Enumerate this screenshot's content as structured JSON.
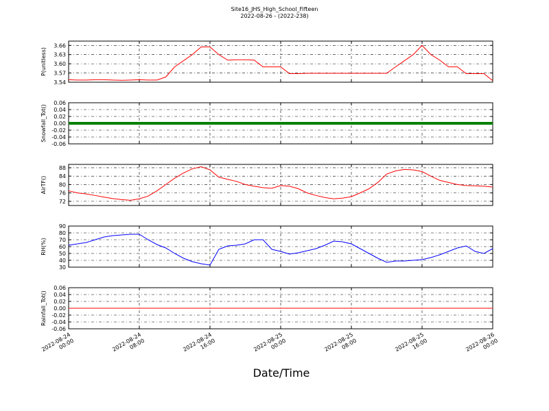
{
  "figure": {
    "title": "Site16_JHS_High_School_Fifteen",
    "subtitle": "2022-08-26 - (2022-238)",
    "xlabel": "Date/Time",
    "x": [
      "2022-08-24 00:00",
      "2022-08-24 01:00",
      "2022-08-24 02:00",
      "2022-08-24 03:00",
      "2022-08-24 04:00",
      "2022-08-24 05:00",
      "2022-08-24 06:00",
      "2022-08-24 07:00",
      "2022-08-24 08:00",
      "2022-08-24 09:00",
      "2022-08-24 10:00",
      "2022-08-24 11:00",
      "2022-08-24 12:00",
      "2022-08-24 13:00",
      "2022-08-24 14:00",
      "2022-08-24 15:00",
      "2022-08-24 16:00",
      "2022-08-24 17:00",
      "2022-08-24 18:00",
      "2022-08-24 19:00",
      "2022-08-24 20:00",
      "2022-08-24 21:00",
      "2022-08-24 22:00",
      "2022-08-24 23:00",
      "2022-08-25 00:00",
      "2022-08-25 01:00",
      "2022-08-25 02:00",
      "2022-08-25 03:00",
      "2022-08-25 04:00",
      "2022-08-25 05:00",
      "2022-08-25 06:00",
      "2022-08-25 07:00",
      "2022-08-25 08:00",
      "2022-08-25 09:00",
      "2022-08-25 10:00",
      "2022-08-25 11:00",
      "2022-08-25 12:00",
      "2022-08-25 13:00",
      "2022-08-25 14:00",
      "2022-08-25 15:00",
      "2022-08-25 16:00",
      "2022-08-25 17:00",
      "2022-08-25 18:00",
      "2022-08-25 19:00",
      "2022-08-25 20:00",
      "2022-08-25 21:00",
      "2022-08-25 22:00",
      "2022-08-25 23:00",
      "2022-08-26 00:00"
    ],
    "xlim": [
      "2022-08-24 00:00",
      "2022-08-26 00:00"
    ],
    "xticks": [
      "2022-08-24 00:00",
      "2022-08-24 08:00",
      "2022-08-24 16:00",
      "2022-08-25 00:00",
      "2022-08-25 08:00",
      "2022-08-25 16:00",
      "2022-08-26 00:00"
    ],
    "grid": true
  },
  "chart_data": [
    {
      "type": "line",
      "ylabel": "P(unitless)",
      "color": "#ff0000",
      "linewidth": 1,
      "ylim": [
        3.54,
        3.674
      ],
      "yticks": [
        3.54,
        3.57,
        {
          "value": 3.6,
          "label": "3.60"
        },
        3.63,
        3.66
      ],
      "values": [
        3.548,
        3.547,
        3.547,
        3.548,
        3.548,
        3.547,
        3.546,
        3.547,
        3.548,
        3.547,
        3.547,
        3.557,
        3.59,
        3.61,
        3.63,
        3.655,
        3.655,
        3.63,
        3.612,
        3.613,
        3.613,
        3.612,
        3.59,
        3.59,
        3.59,
        3.568,
        3.568,
        3.569,
        3.569,
        3.569,
        3.569,
        3.569,
        3.569,
        3.569,
        3.569,
        3.569,
        3.569,
        3.59,
        3.61,
        3.63,
        3.66,
        3.63,
        3.612,
        3.59,
        3.59,
        3.568,
        3.568,
        3.568,
        3.545
      ]
    },
    {
      "type": "line",
      "ylabel": "Snowfall_Tot()",
      "color": "#008000",
      "linewidth": 4,
      "ylim": [
        -0.06,
        0.06
      ],
      "yticks": [
        -0.06,
        -0.04,
        -0.02,
        {
          "value": 0,
          "label": "0.00"
        },
        0.02,
        0.04,
        0.06
      ],
      "values": [
        0,
        0,
        0,
        0,
        0,
        0,
        0,
        0,
        0,
        0,
        0,
        0,
        0,
        0,
        0,
        0,
        0,
        0,
        0,
        0,
        0,
        0,
        0,
        0,
        0,
        0,
        0,
        0,
        0,
        0,
        0,
        0,
        0,
        0,
        0,
        0,
        0,
        0,
        0,
        0,
        0,
        0,
        0,
        0,
        0,
        0,
        0,
        0,
        0
      ]
    },
    {
      "type": "line",
      "ylabel": "AirTF()",
      "color": "#ff0000",
      "linewidth": 1,
      "ylim": [
        70,
        89.6
      ],
      "yticks": [
        72,
        76,
        80,
        84,
        88
      ],
      "values": [
        77,
        76,
        75.5,
        74.8,
        74,
        73.3,
        72.8,
        72.5,
        73.2,
        74.5,
        77,
        80,
        83,
        85.5,
        87.5,
        88.5,
        87,
        83.5,
        82.5,
        81.5,
        80,
        79.2,
        78.5,
        78.2,
        79.5,
        79.2,
        78,
        76,
        74.8,
        73.8,
        73.2,
        73.5,
        74.2,
        76,
        78,
        81,
        85,
        86.5,
        87.2,
        87,
        86.2,
        84,
        82,
        81,
        80,
        79.5,
        79.4,
        79.2,
        78.8
      ]
    },
    {
      "type": "line",
      "ylabel": "RH(%)",
      "color": "#0000ff",
      "linewidth": 1,
      "ylim": [
        30,
        90
      ],
      "yticks": [
        30,
        40,
        50,
        60,
        70,
        80,
        90
      ],
      "values": [
        62,
        64,
        66,
        70,
        74,
        76,
        77,
        78,
        78,
        70,
        63,
        58,
        50,
        43,
        38,
        35,
        33,
        56,
        61,
        62,
        64,
        70,
        70,
        56,
        53,
        49,
        51,
        54,
        57,
        62,
        68,
        67,
        64,
        57,
        50,
        43,
        37,
        39,
        39,
        40,
        41,
        44,
        48,
        53,
        58,
        61,
        53,
        50,
        57
      ]
    },
    {
      "type": "line",
      "ylabel": "Rainfall_Tot()",
      "color": "#ff0000",
      "linewidth": 1,
      "ylim": [
        -0.06,
        0.06
      ],
      "yticks": [
        -0.06,
        -0.04,
        -0.02,
        {
          "value": 0,
          "label": "0.00"
        },
        0.02,
        0.04,
        0.06
      ],
      "values": [
        0,
        0,
        0,
        0,
        0,
        0,
        0,
        0,
        0,
        0,
        0,
        0,
        0,
        0,
        0,
        0,
        0,
        0,
        0,
        0,
        0,
        0,
        0,
        0,
        0,
        0,
        0,
        0,
        0,
        0,
        0,
        0,
        0,
        0,
        0,
        0,
        0,
        0,
        0,
        0,
        0,
        0,
        0,
        0,
        0,
        0,
        0,
        0,
        0
      ]
    }
  ]
}
